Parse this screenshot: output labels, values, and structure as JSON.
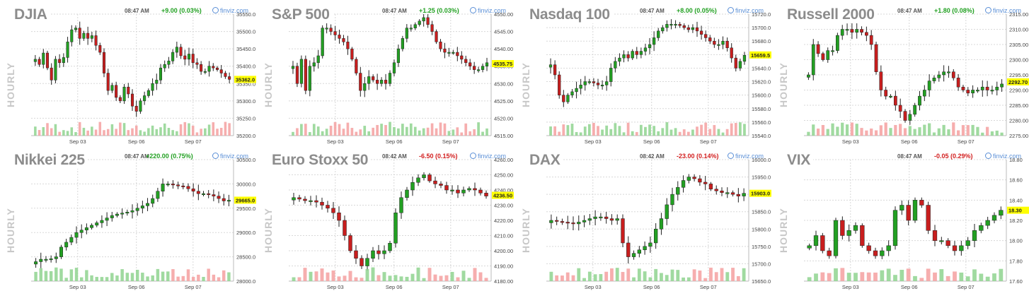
{
  "source_label": "finviz.com",
  "axis_word": "HOURLY",
  "colors": {
    "up": "#22a022",
    "down": "#c81e1e",
    "vol_up": "#8fd48f",
    "vol_down": "#f4a0a0",
    "last": "#ffff00"
  },
  "chart_data": [
    {
      "type": "candlestick",
      "name": "DJIA",
      "time": "08:47 AM",
      "change": "+9.00 (0.03%)",
      "direction": "up",
      "ylim": [
        35200,
        35550
      ],
      "yticks": [
        "35550.0",
        "35500.0",
        "35450.0",
        "35400.0",
        "35350.0",
        "35300.0",
        "35250.0",
        "35200.0"
      ],
      "xticks": [
        {
          "label": "Sep 03",
          "at": 0.23
        },
        {
          "label": "Sep 06",
          "at": 0.52
        },
        {
          "label": "Sep 07",
          "at": 0.8
        }
      ],
      "last": "35362.0",
      "closes": [
        35420,
        35405,
        35438,
        35395,
        35360,
        35420,
        35410,
        35425,
        35470,
        35505,
        35510,
        35480,
        35495,
        35480,
        35488,
        35460,
        35440,
        35380,
        35330,
        35345,
        35310,
        35300,
        35340,
        35320,
        35285,
        35270,
        35300,
        35315,
        35330,
        35350,
        35360,
        35395,
        35405,
        35415,
        35440,
        35455,
        35430,
        35420,
        35435,
        35410,
        35405,
        35385,
        35385,
        35400,
        35395,
        35390,
        35380,
        35370,
        35362
      ]
    },
    {
      "type": "candlestick",
      "name": "S&P 500",
      "time": "08:47 AM",
      "change": "+1.25 (0.03%)",
      "direction": "up",
      "ylim": [
        4515,
        4550
      ],
      "yticks": [
        "4550.00",
        "4545.00",
        "4540.00",
        "4535.00",
        "4530.00",
        "4525.00",
        "4520.00",
        "4515.00"
      ],
      "xticks": [
        {
          "label": "Sep 03",
          "at": 0.23
        },
        {
          "label": "Sep 06",
          "at": 0.52
        },
        {
          "label": "Sep 07",
          "at": 0.8
        }
      ],
      "last": "4535.75",
      "closes": [
        4535,
        4530,
        4537,
        4528,
        4535,
        4536,
        4538,
        4546,
        4546,
        4545,
        4544,
        4543,
        4542,
        4540,
        4537,
        4533,
        4528,
        4530,
        4532,
        4531,
        4530,
        4531,
        4530,
        4533,
        4536,
        4540,
        4543,
        4546,
        4546,
        4547,
        4548,
        4549,
        4547,
        4545,
        4542,
        4540,
        4539,
        4539,
        4539,
        4538,
        4537,
        4536,
        4535,
        4534,
        4534,
        4535,
        4536
      ]
    },
    {
      "type": "candlestick",
      "name": "Nasdaq 100",
      "time": "08:47 AM",
      "change": "+8.00 (0.05%)",
      "direction": "up",
      "ylim": [
        15540,
        15720
      ],
      "yticks": [
        "15720.0",
        "15700.0",
        "15680.0",
        "15660.0",
        "15640.0",
        "15620.0",
        "15600.0",
        "15580.0",
        "15560.0",
        "15540.0"
      ],
      "xticks": [
        {
          "label": "Sep 03",
          "at": 0.23
        },
        {
          "label": "Sep 06",
          "at": 0.52
        },
        {
          "label": "Sep 07",
          "at": 0.8
        }
      ],
      "last": "15659.5",
      "closes": [
        15645,
        15630,
        15600,
        15590,
        15600,
        15605,
        15610,
        15615,
        15620,
        15620,
        15618,
        15615,
        15615,
        15620,
        15640,
        15650,
        15655,
        15660,
        15655,
        15665,
        15660,
        15665,
        15670,
        15675,
        15685,
        15695,
        15700,
        15705,
        15705,
        15705,
        15703,
        15700,
        15697,
        15700,
        15695,
        15690,
        15685,
        15680,
        15675,
        15675,
        15680,
        15670,
        15655,
        15640,
        15650,
        15659
      ]
    },
    {
      "type": "candlestick",
      "name": "Russell 2000",
      "time": "08:47 AM",
      "change": "+1.80 (0.08%)",
      "direction": "up",
      "ylim": [
        2275,
        2315
      ],
      "yticks": [
        "2315.00",
        "2310.00",
        "2305.00",
        "2300.00",
        "2295.00",
        "2290.00",
        "2285.00",
        "2280.00",
        "2275.00"
      ],
      "xticks": [
        {
          "label": "Sep 03",
          "at": 0.23
        },
        {
          "label": "Sep 06",
          "at": 0.52
        },
        {
          "label": "Sep 07",
          "at": 0.8
        }
      ],
      "last": "2292.70",
      "closes": [
        2295,
        2305,
        2302,
        2300,
        2303,
        2303,
        2308,
        2310,
        2310,
        2309,
        2310,
        2309,
        2308,
        2305,
        2296,
        2290,
        2288,
        2288,
        2285,
        2283,
        2280,
        2282,
        2285,
        2288,
        2290,
        2293,
        2294,
        2295,
        2296,
        2296,
        2294,
        2291,
        2290,
        2289,
        2290,
        2290,
        2291,
        2290,
        2290,
        2291,
        2292
      ]
    },
    {
      "type": "candlestick",
      "name": "Nikkei 225",
      "time": "08:47 AM",
      "change": "+220.00 (0.75%)",
      "direction": "up",
      "ylim": [
        28000,
        30500
      ],
      "yticks": [
        "30500.0",
        "30000.0",
        "29500.0",
        "29000.0",
        "28500.0",
        "28000.0"
      ],
      "xticks": [
        {
          "label": "Sep 03",
          "at": 0.23
        },
        {
          "label": "Sep 06",
          "at": 0.52
        },
        {
          "label": "Sep 07",
          "at": 0.8
        }
      ],
      "last": "29665.0",
      "closes": [
        28400,
        28450,
        28450,
        28460,
        28500,
        28700,
        28800,
        28900,
        29000,
        29050,
        29100,
        29150,
        29200,
        29250,
        29300,
        29350,
        29380,
        29400,
        29420,
        29450,
        29500,
        29550,
        29600,
        29700,
        29850,
        30000,
        30000,
        29980,
        29960,
        29950,
        29900,
        29850,
        29800,
        29800,
        29780,
        29750,
        29700,
        29650,
        29665
      ]
    },
    {
      "type": "candlestick",
      "name": "Euro Stoxx 50",
      "time": "08:42 AM",
      "change": "-6.50 (0.15%)",
      "direction": "down",
      "ylim": [
        4180,
        4260
      ],
      "yticks": [
        "4260.00",
        "4250.00",
        "4240.00",
        "4230.00",
        "4220.00",
        "4210.00",
        "4200.00",
        "4190.00",
        "4180.00"
      ],
      "xticks": [
        {
          "label": "Sep 03",
          "at": 0.23
        },
        {
          "label": "Sep 06",
          "at": 0.52
        },
        {
          "label": "Sep 07",
          "at": 0.8
        }
      ],
      "last": "4236.50",
      "closes": [
        4235,
        4234,
        4233,
        4233,
        4232,
        4230,
        4228,
        4225,
        4220,
        4210,
        4200,
        4195,
        4190,
        4195,
        4200,
        4198,
        4200,
        4205,
        4225,
        4235,
        4240,
        4245,
        4248,
        4250,
        4246,
        4244,
        4243,
        4240,
        4240,
        4238,
        4240,
        4241,
        4240,
        4238,
        4236
      ]
    },
    {
      "type": "candlestick",
      "name": "DAX",
      "time": "08:42 AM",
      "change": "-23.00 (0.14%)",
      "direction": "down",
      "ylim": [
        15650,
        16000
      ],
      "yticks": [
        "16000.0",
        "15950.0",
        "15900.0",
        "15850.0",
        "15800.0",
        "15750.0",
        "15700.0",
        "15650.0"
      ],
      "xticks": [
        {
          "label": "Sep 03",
          "at": 0.23
        },
        {
          "label": "Sep 06",
          "at": 0.52
        },
        {
          "label": "Sep 07",
          "at": 0.8
        }
      ],
      "last": "15903.0",
      "closes": [
        15825,
        15822,
        15820,
        15818,
        15815,
        15820,
        15825,
        15830,
        15835,
        15835,
        15830,
        15825,
        15830,
        15760,
        15720,
        15730,
        15740,
        15750,
        15760,
        15800,
        15830,
        15870,
        15900,
        15920,
        15940,
        15950,
        15945,
        15935,
        15930,
        15915,
        15910,
        15905,
        15905,
        15900,
        15895,
        15903
      ]
    },
    {
      "type": "candlestick",
      "name": "VIX",
      "time": "08:47 AM",
      "change": "-0.05 (0.29%)",
      "direction": "down",
      "ylim": [
        17.6,
        18.8
      ],
      "yticks": [
        "18.80",
        "18.60",
        "18.40",
        "18.20",
        "18.00",
        "17.80",
        "17.60"
      ],
      "xticks": [
        {
          "label": "Sep 03",
          "at": 0.23
        },
        {
          "label": "Sep 06",
          "at": 0.52
        },
        {
          "label": "Sep 07",
          "at": 0.8
        }
      ],
      "last": "18.30",
      "closes": [
        17.95,
        18.05,
        17.9,
        17.85,
        18.2,
        18.05,
        18.1,
        18.15,
        17.95,
        17.9,
        17.85,
        17.9,
        17.95,
        18.3,
        18.35,
        18.2,
        18.4,
        18.35,
        18.1,
        18.0,
        18.0,
        17.95,
        17.9,
        17.95,
        18.0,
        18.1,
        18.15,
        18.2,
        18.25,
        18.3
      ]
    }
  ]
}
